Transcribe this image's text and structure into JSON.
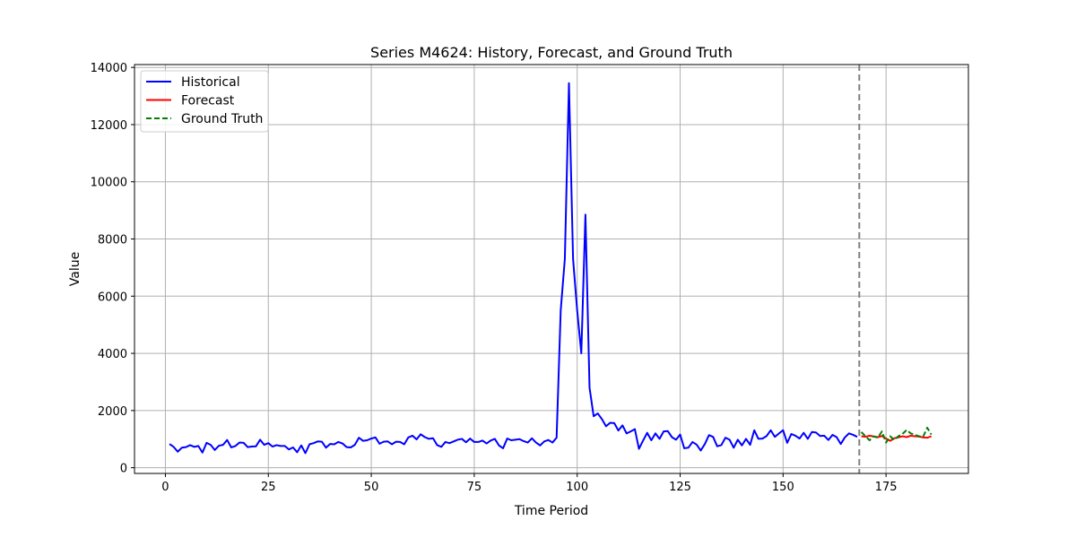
{
  "chart_data": {
    "type": "line",
    "title": "Series M4624: History, Forecast, and Ground Truth",
    "xlabel": "Time Period",
    "ylabel": "Value",
    "xlim": [
      -7.5,
      195
    ],
    "ylim": [
      -200,
      14100
    ],
    "xticks": [
      0,
      25,
      50,
      75,
      100,
      125,
      150,
      175
    ],
    "yticks": [
      0,
      2000,
      4000,
      6000,
      8000,
      10000,
      12000,
      14000
    ],
    "grid": true,
    "legend_position": "top-left",
    "vline": {
      "x": 168.5,
      "color": "#808080",
      "style": "dashed"
    },
    "series": [
      {
        "name": "Historical",
        "color": "#0000ff",
        "style": "solid",
        "x": [
          1,
          2,
          3,
          4,
          5,
          6,
          7,
          8,
          9,
          10,
          11,
          12,
          13,
          14,
          15,
          16,
          17,
          18,
          19,
          20,
          21,
          22,
          23,
          24,
          25,
          26,
          27,
          28,
          29,
          30,
          31,
          32,
          33,
          34,
          35,
          36,
          37,
          38,
          39,
          40,
          41,
          42,
          43,
          44,
          45,
          46,
          47,
          48,
          49,
          50,
          51,
          52,
          53,
          54,
          55,
          56,
          57,
          58,
          59,
          60,
          61,
          62,
          63,
          64,
          65,
          66,
          67,
          68,
          69,
          70,
          71,
          72,
          73,
          74,
          75,
          76,
          77,
          78,
          79,
          80,
          81,
          82,
          83,
          84,
          85,
          86,
          87,
          88,
          89,
          90,
          91,
          92,
          93,
          94,
          95,
          96,
          97,
          98,
          99,
          100,
          101,
          102,
          103,
          104,
          105,
          106,
          107,
          108,
          109,
          110,
          111,
          112,
          113,
          114,
          115,
          116,
          117,
          118,
          119,
          120,
          121,
          122,
          123,
          124,
          125,
          126,
          127,
          128,
          129,
          130,
          131,
          132,
          133,
          134,
          135,
          136,
          137,
          138,
          139,
          140,
          141,
          142,
          143,
          144,
          145,
          146,
          147,
          148,
          149,
          150,
          151,
          152,
          153,
          154,
          155,
          156,
          157,
          158,
          159,
          160,
          161,
          162,
          163,
          164,
          165,
          166,
          167,
          168
        ],
        "values": [
          830,
          730,
          560,
          700,
          720,
          790,
          730,
          760,
          530,
          870,
          800,
          620,
          770,
          800,
          970,
          710,
          760,
          880,
          870,
          720,
          740,
          750,
          980,
          800,
          860,
          740,
          790,
          760,
          760,
          640,
          710,
          540,
          780,
          510,
          820,
          860,
          920,
          910,
          700,
          830,
          820,
          900,
          850,
          720,
          710,
          800,
          1050,
          940,
          960,
          1020,
          1060,
          840,
          910,
          920,
          820,
          910,
          900,
          820,
          1060,
          1120,
          990,
          1170,
          1070,
          1010,
          1030,
          790,
          730,
          900,
          860,
          920,
          980,
          1010,
          890,
          1020,
          900,
          900,
          950,
          850,
          950,
          1010,
          780,
          680,
          1020,
          960,
          980,
          1000,
          930,
          880,
          1030,
          880,
          780,
          920,
          970,
          880,
          1050,
          5500,
          7300,
          13450,
          7300,
          5500,
          4000,
          8850,
          2800,
          1800,
          1900,
          1700,
          1450,
          1570,
          1560,
          1300,
          1480,
          1200,
          1270,
          1350,
          660,
          950,
          1220,
          960,
          1200,
          1010,
          1270,
          1280,
          1070,
          980,
          1160,
          680,
          700,
          900,
          810,
          600,
          830,
          1140,
          1080,
          750,
          790,
          1050,
          980,
          700,
          980,
          780,
          1010,
          800,
          1310,
          1010,
          1020,
          1110,
          1310,
          1080,
          1200,
          1310,
          870,
          1180,
          1120,
          1020,
          1220,
          1010,
          1250,
          1230,
          1110,
          1120,
          970,
          1150,
          1070,
          830,
          1060,
          1200,
          1150,
          1080
        ]
      },
      {
        "name": "Forecast",
        "color": "#ff0000",
        "style": "solid",
        "x": [
          169,
          170,
          171,
          172,
          173,
          174,
          175,
          176,
          177,
          178,
          179,
          180,
          181,
          182,
          183,
          184,
          185,
          186
        ],
        "values": [
          1100,
          1080,
          1120,
          1090,
          1070,
          1110,
          1020,
          940,
          1030,
          1060,
          1100,
          1070,
          1120,
          1100,
          1090,
          1060,
          1050,
          1100
        ]
      },
      {
        "name": "Ground Truth",
        "color": "#008000",
        "style": "dashed",
        "x": [
          169,
          170,
          171,
          172,
          173,
          174,
          175,
          176,
          177,
          178,
          179,
          180,
          181,
          182,
          183,
          184,
          185,
          186
        ],
        "values": [
          1250,
          1100,
          960,
          1100,
          1050,
          1270,
          880,
          1100,
          970,
          1100,
          1180,
          1320,
          1200,
          1150,
          1100,
          1080,
          1400,
          1160
        ]
      }
    ]
  }
}
